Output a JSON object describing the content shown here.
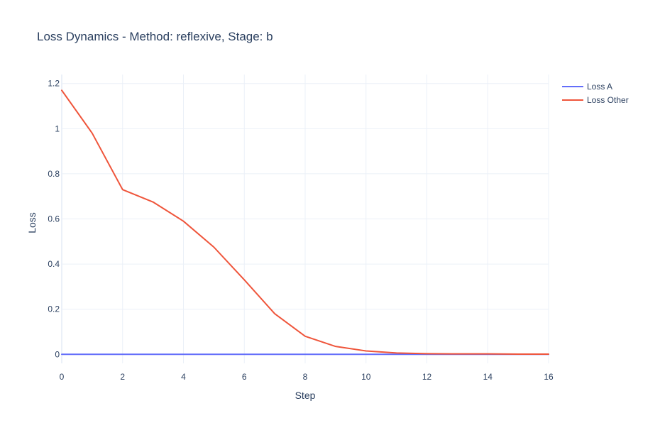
{
  "chart_data": {
    "type": "line",
    "title": "Loss Dynamics - Method: reflexive, Stage: b",
    "xlabel": "Step",
    "ylabel": "Loss",
    "xlim": [
      0,
      16
    ],
    "ylim": [
      -0.04,
      1.24
    ],
    "xticks": [
      0,
      2,
      4,
      6,
      8,
      10,
      12,
      14,
      16
    ],
    "yticks": [
      0,
      0.2,
      0.4,
      0.6,
      0.8,
      1,
      1.2
    ],
    "xtick_labels": [
      "0",
      "2",
      "4",
      "6",
      "8",
      "10",
      "12",
      "14",
      "16"
    ],
    "ytick_labels": [
      "0",
      "0.2",
      "0.4",
      "0.6",
      "0.8",
      "1",
      "1.2"
    ],
    "grid": true,
    "legend_position": "top-right",
    "x": [
      0,
      1,
      2,
      3,
      4,
      5,
      6,
      7,
      8,
      9,
      10,
      11,
      12,
      13,
      14,
      15,
      16
    ],
    "series": [
      {
        "name": "Loss A",
        "color": "#636efa",
        "values": [
          0,
          0,
          0,
          0,
          0,
          0,
          0,
          0,
          0,
          0,
          0,
          0,
          0,
          0,
          0,
          0,
          0
        ]
      },
      {
        "name": "Loss Other",
        "color": "#ef553b",
        "values": [
          1.17,
          0.98,
          0.73,
          0.675,
          0.59,
          0.475,
          0.33,
          0.18,
          0.08,
          0.035,
          0.015,
          0.006,
          0.003,
          0.002,
          0.002,
          0.001,
          0.001
        ]
      }
    ]
  }
}
